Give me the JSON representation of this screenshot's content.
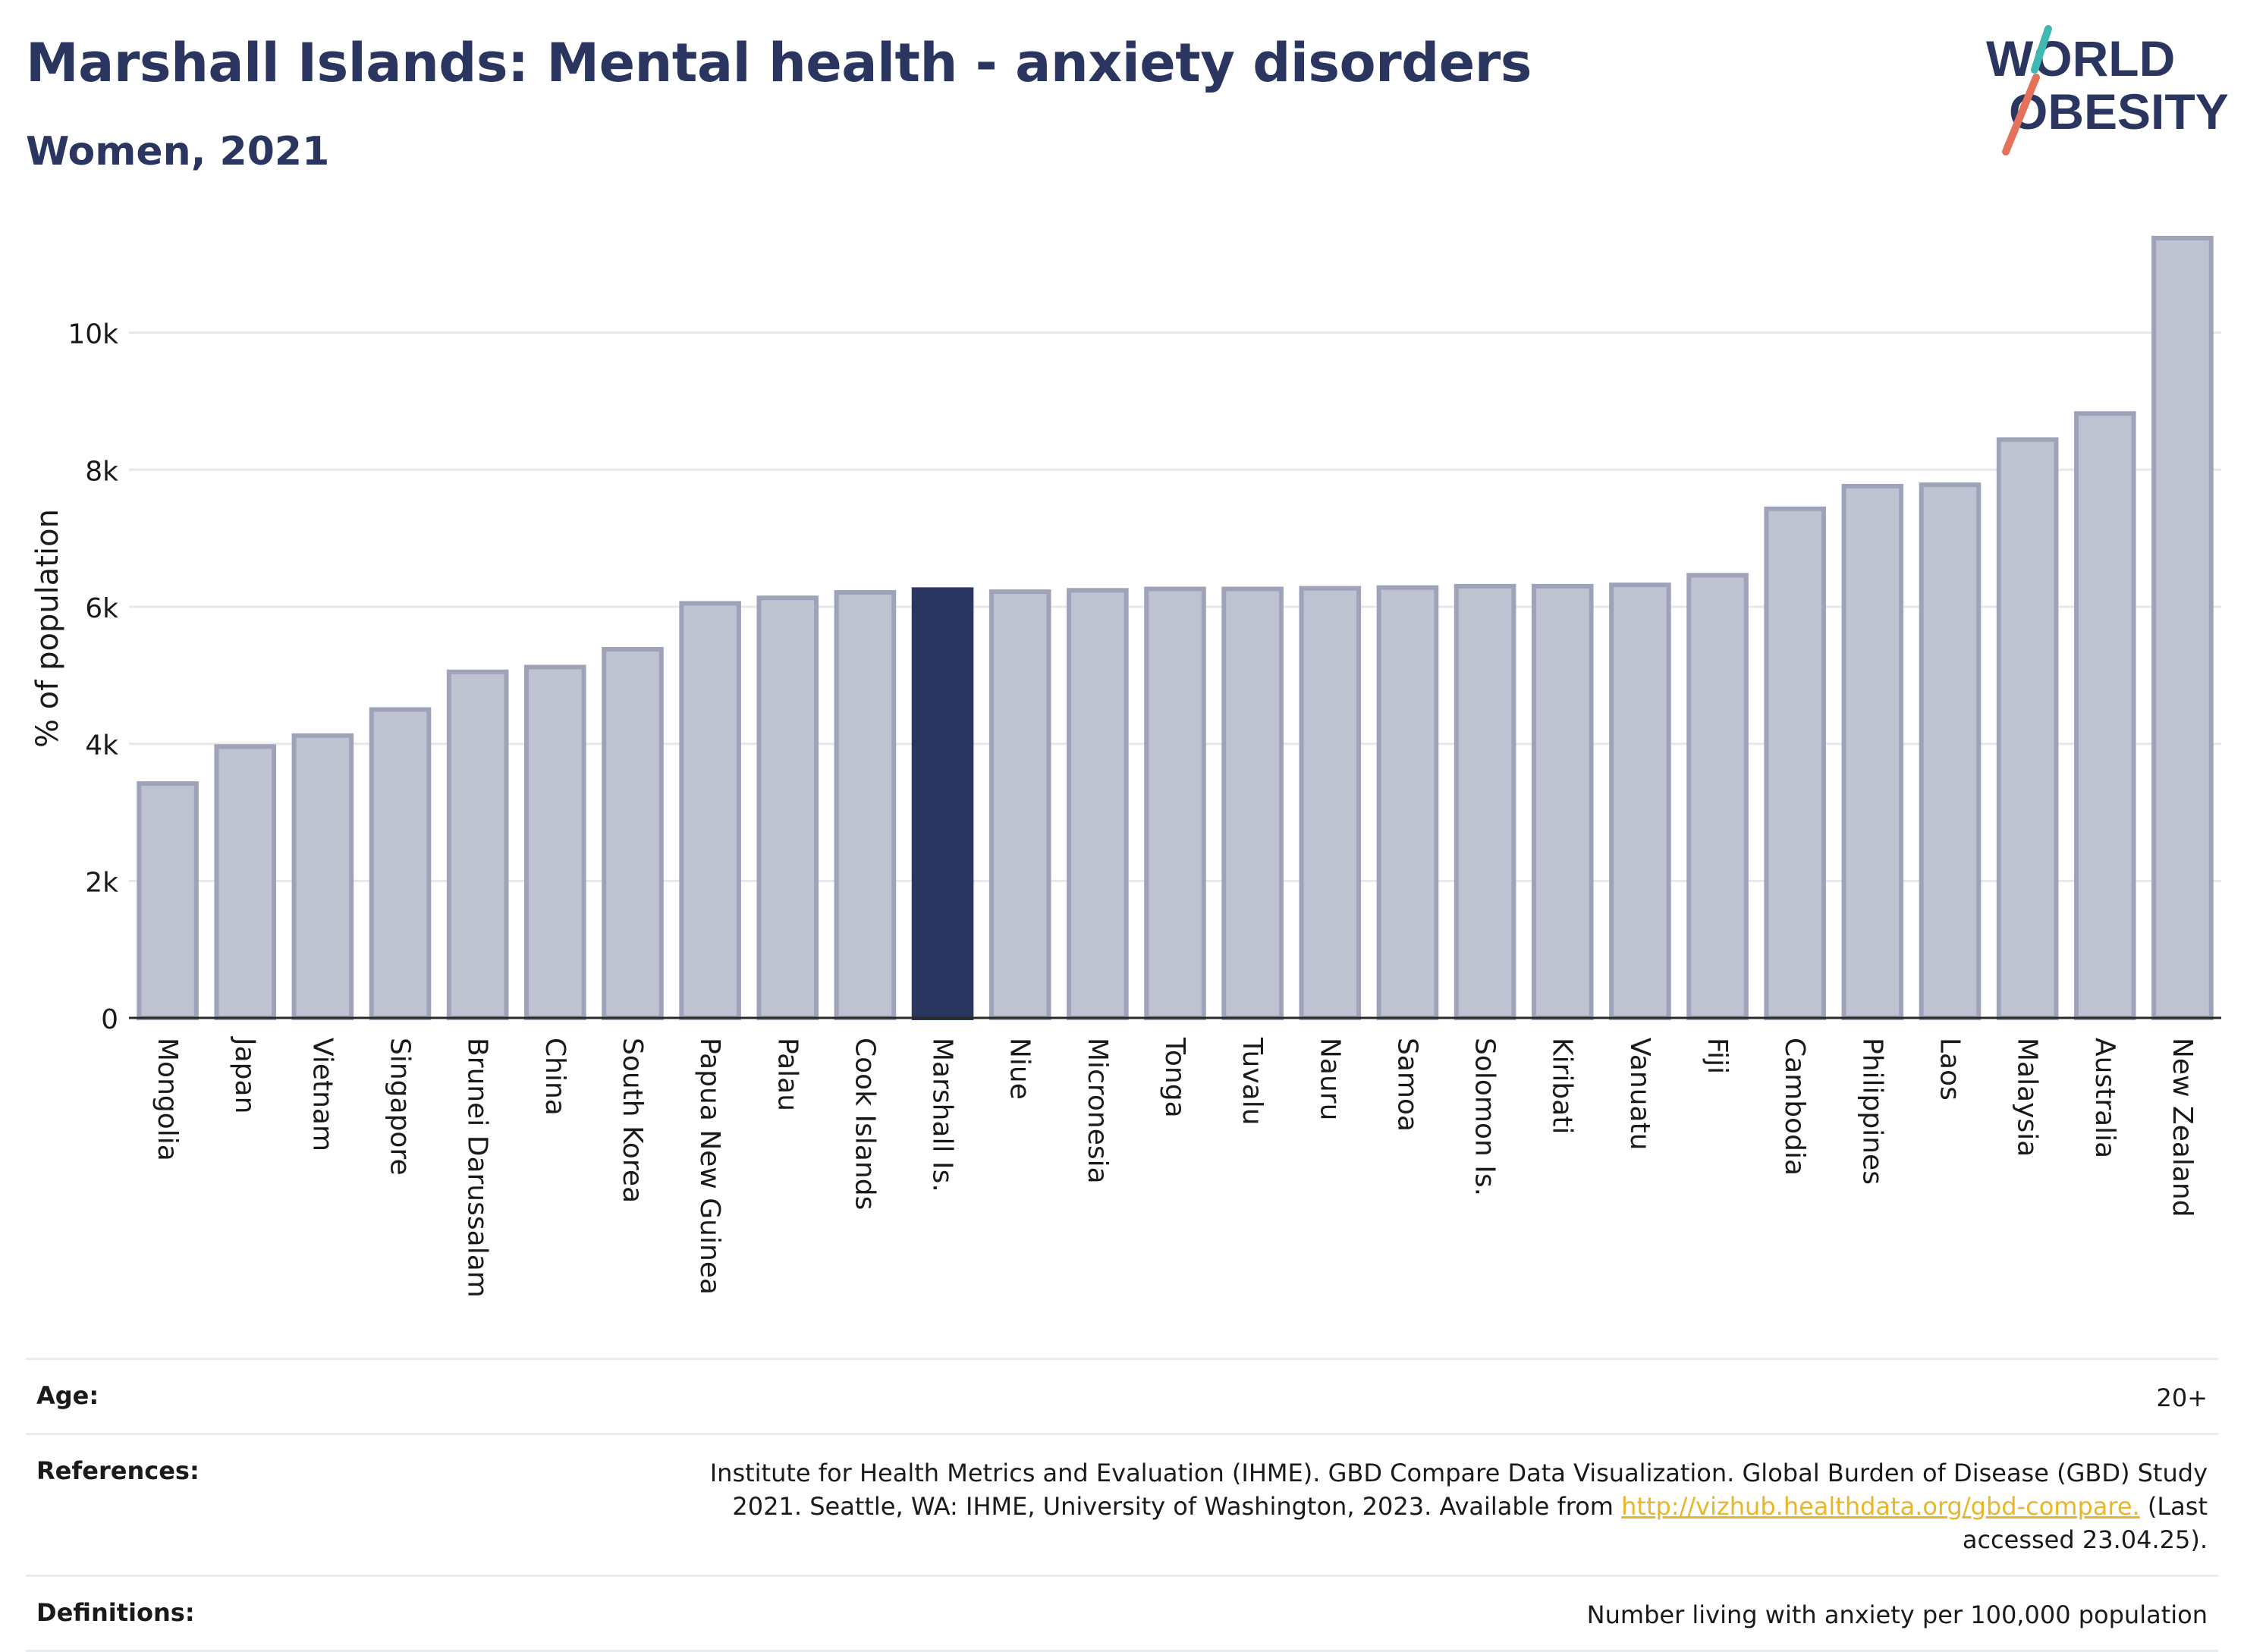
{
  "header": {
    "title": "Marshall Islands: Mental health - anxiety disorders",
    "subtitle": "Women, 2021"
  },
  "logo": {
    "line1": "WORLD",
    "line2": "OBESITY"
  },
  "colors": {
    "highlight": "#2a365f",
    "bar_fill": "#bfc2d1",
    "bar_stroke": "#9ea3b9",
    "grid": "#e6e8ec",
    "logo_teal": "#3fb8b2",
    "logo_coral": "#e4715a"
  },
  "chart_data": {
    "type": "bar",
    "ylabel": "% of population",
    "ylim": [
      0,
      11700
    ],
    "yticks": [
      {
        "value": 0,
        "label": "0"
      },
      {
        "value": 2000,
        "label": "2k"
      },
      {
        "value": 4000,
        "label": "4k"
      },
      {
        "value": 6000,
        "label": "6k"
      },
      {
        "value": 8000,
        "label": "8k"
      },
      {
        "value": 10000,
        "label": "10k"
      }
    ],
    "grid": true,
    "highlight": "Marshall Is.",
    "categories": [
      "Mongolia",
      "Japan",
      "Vietnam",
      "Singapore",
      "Brunei Darussalam",
      "China",
      "South Korea",
      "Papua New Guinea",
      "Palau",
      "Cook Islands",
      "Marshall Is.",
      "Niue",
      "Micronesia",
      "Tonga",
      "Tuvalu",
      "Nauru",
      "Samoa",
      "Solomon Is.",
      "Kiribati",
      "Vanuatu",
      "Fiji",
      "Cambodia",
      "Philippines",
      "Laos",
      "Malaysia",
      "Australia",
      "New Zealand"
    ],
    "values": [
      3420,
      3960,
      4120,
      4500,
      5050,
      5120,
      5380,
      6050,
      6130,
      6210,
      6250,
      6220,
      6240,
      6260,
      6260,
      6270,
      6280,
      6300,
      6300,
      6320,
      6460,
      7430,
      7760,
      7780,
      8440,
      8820,
      11380
    ]
  },
  "meta": {
    "age_label": "Age:",
    "age_value": "20+",
    "references_label": "References:",
    "references_text1": "Institute for Health Metrics and Evaluation (IHME). GBD Compare Data Visualization. Global Burden of Disease (GBD) Study 2021. Seattle, WA: IHME, University of Washington, 2023. Available from ",
    "references_link": "http://vizhub.healthdata.org/gbd-compare.",
    "references_text2": " (Last accessed 23.04.25).",
    "definitions_label": "Definitions:",
    "definitions_value": "Number living with anxiety per 100,000 population"
  }
}
